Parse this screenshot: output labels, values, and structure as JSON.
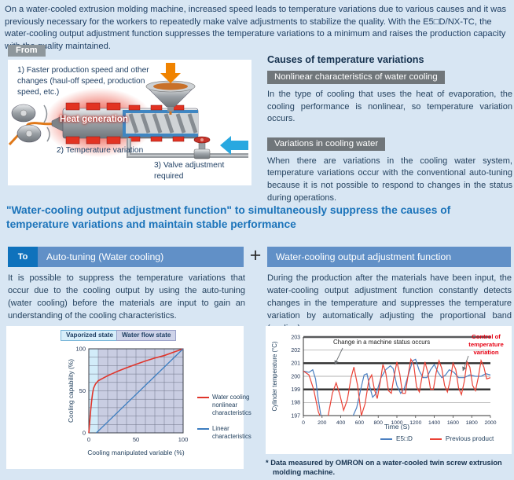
{
  "intro": "On a water-cooled extrusion molding machine, increased speed leads to temperature variations due to various causes and it was previously necessary for the workers to repeatedly make valve adjustments to stabilize the quality.  With the E5□D/NX-TC, the water-cooling output adjustment function suppresses the temperature variations to a minimum and raises the production capacity with the quality maintained.",
  "from_section": {
    "label": "From",
    "callout1": "1) Faster production speed and other changes (haul-off speed, production speed, etc.)",
    "heat_label": "Heat generation",
    "callout2": "2) Temperature variation",
    "callout3": "3) Valve adjustment required"
  },
  "causes": {
    "title": "Causes of temperature variations",
    "items": [
      {
        "header": "Nonlinear characteristics of water cooling",
        "body": "In the type of cooling that uses the heat of evaporation, the cooling performance is nonlinear, so temperature variation occurs."
      },
      {
        "header": "Variations in cooling water",
        "body": "When there are variations in the cooling water system, temperature variations occur with the conventional auto-tuning because it is not possible to respond to changes in the status during operations."
      }
    ]
  },
  "solution": {
    "heading": "\"Water-cooling output adjustment function\" to simultaneously suppress the causes of temperature variations and maintain stable performance",
    "to_label": "To",
    "left_bar": "Auto-tuning (Water cooling)",
    "plus": "+",
    "right_bar": "Water-cooling output adjustment function",
    "left_body": "It is possible to suppress the temperature variations that occur due to the cooling output by using the auto-tuning (water cooling) before the materials are input to gain an understanding of the cooling characteristics.",
    "right_body": "During the production after the materials have been input, the water-cooling output adjustment function constantly detects changes in the temperature and suppresses the temperature variation by automatically adjusting the proportional band (cooling)."
  },
  "footnote": "* Data measured by OMRON on a water-cooled twin screw extrusion molding machine.",
  "colors": {
    "page_bg": "#d8e6f3",
    "heading_blue": "#1c74ba",
    "bar_blue": "#6190c7",
    "to_box_blue": "#0f72bc",
    "gray_label": "#8e979c",
    "gray_bar": "#70767a",
    "annotation_red": "#e60012"
  },
  "chart_data": [
    {
      "type": "line",
      "title": "",
      "xlabel": "Cooling manipulated variable (%)",
      "ylabel": "Cooling capability (%)",
      "xlim": [
        0,
        100
      ],
      "ylim": [
        0,
        100
      ],
      "xticks": [
        0,
        50,
        100
      ],
      "yticks": [
        0,
        50,
        100
      ],
      "grid": true,
      "grid_step": 10,
      "legend_position": "right",
      "regions": [
        {
          "label": "Vaporized state",
          "from": 0,
          "to": 10,
          "color": "#d2ecf9"
        },
        {
          "label": "Water flow state",
          "from": 10,
          "to": 100,
          "color": "#c9cde2"
        }
      ],
      "series": [
        {
          "name": "Water cooling nonlinear characteristics",
          "color": "#e0352b",
          "x": [
            0,
            1,
            2,
            3,
            4,
            5,
            7,
            10,
            15,
            20,
            25,
            30,
            40,
            50,
            60,
            70,
            80,
            90,
            100
          ],
          "y": [
            0,
            13,
            27,
            38,
            47,
            53,
            58,
            62,
            65,
            68,
            70.5,
            73,
            77.5,
            81.5,
            85.5,
            89,
            92,
            96,
            100
          ]
        },
        {
          "name": "Linear characteristics",
          "color": "#3c7dc0",
          "x": [
            8,
            100
          ],
          "y": [
            0,
            100
          ]
        }
      ]
    },
    {
      "type": "line",
      "title": "",
      "xlabel": "Time (S)",
      "ylabel": "Cylinder temperature (°C)",
      "xlim": [
        0,
        2000
      ],
      "ylim": [
        197,
        203
      ],
      "xticks": [
        0,
        200,
        400,
        600,
        800,
        1000,
        1200,
        1400,
        1600,
        1800,
        2000
      ],
      "yticks": [
        197,
        198,
        199,
        200,
        201,
        202,
        203
      ],
      "bold_yticks": [
        199,
        201,
        203
      ],
      "grid": true,
      "legend_position": "bottom",
      "annotations": [
        {
          "text": "Change in a machine status occurs",
          "color": "#222222"
        },
        {
          "text": "Control of temperature variation",
          "color": "#e60012"
        }
      ],
      "series": [
        {
          "name": "E5□D",
          "color": "#4a7fc1",
          "x": [
            0,
            60,
            100,
            130,
            160,
            190,
            300,
            430,
            520,
            570,
            610,
            650,
            680,
            710,
            740,
            780,
            830,
            880,
            930,
            960,
            1000,
            1040,
            1080,
            1130,
            1170,
            1200,
            1240,
            1280,
            1320,
            1360,
            1400,
            1440,
            1480,
            1520,
            1560,
            1610,
            1660,
            1720,
            1780,
            1840,
            1900,
            1950,
            2000
          ],
          "y": [
            200.4,
            200.3,
            200.5,
            199.8,
            198.2,
            196.9,
            196.5,
            196.6,
            196.8,
            197.6,
            198.9,
            200.1,
            200.2,
            199.2,
            198.4,
            198.7,
            199.9,
            200.5,
            200.8,
            200.6,
            199.3,
            198.7,
            199.1,
            200.3,
            201.2,
            201.3,
            200.4,
            199.9,
            199.9,
            200.5,
            200.9,
            200.3,
            199.9,
            200.1,
            200.5,
            200.3,
            199.9,
            199.9,
            200.1,
            200.0,
            200.0,
            200.2,
            200.1
          ]
        },
        {
          "name": "Previous product",
          "color": "#ea4135",
          "x": [
            0,
            60,
            110,
            160,
            210,
            260,
            310,
            350,
            390,
            430,
            470,
            510,
            540,
            580,
            620,
            660,
            700,
            730,
            760,
            790,
            820,
            850,
            880,
            910,
            940,
            970,
            1000,
            1030,
            1060,
            1090,
            1120,
            1150,
            1180,
            1210,
            1240,
            1270,
            1300,
            1330,
            1360,
            1390,
            1420,
            1450,
            1480,
            1510,
            1540,
            1570,
            1600,
            1630,
            1660,
            1690,
            1720,
            1750,
            1780,
            1810,
            1840,
            1870,
            1900,
            1930,
            1960,
            2000
          ],
          "y": [
            200.4,
            200.1,
            199.0,
            197.3,
            196.4,
            196.8,
            198.7,
            199.5,
            198.6,
            197.4,
            198.2,
            199.9,
            200.7,
            199.3,
            197.0,
            197.9,
            199.7,
            200.1,
            199.0,
            198.3,
            199.5,
            200.9,
            200.3,
            198.9,
            198.7,
            200.0,
            201.1,
            200.2,
            198.7,
            198.7,
            200.1,
            201.3,
            200.9,
            199.2,
            198.8,
            200.0,
            201.1,
            200.3,
            199.0,
            199.0,
            200.3,
            201.2,
            200.6,
            199.3,
            198.8,
            199.7,
            201.0,
            200.5,
            199.1,
            198.6,
            199.6,
            201.1,
            200.7,
            199.3,
            198.9,
            199.9,
            201.2,
            200.7,
            199.8,
            199.9
          ]
        }
      ]
    }
  ]
}
